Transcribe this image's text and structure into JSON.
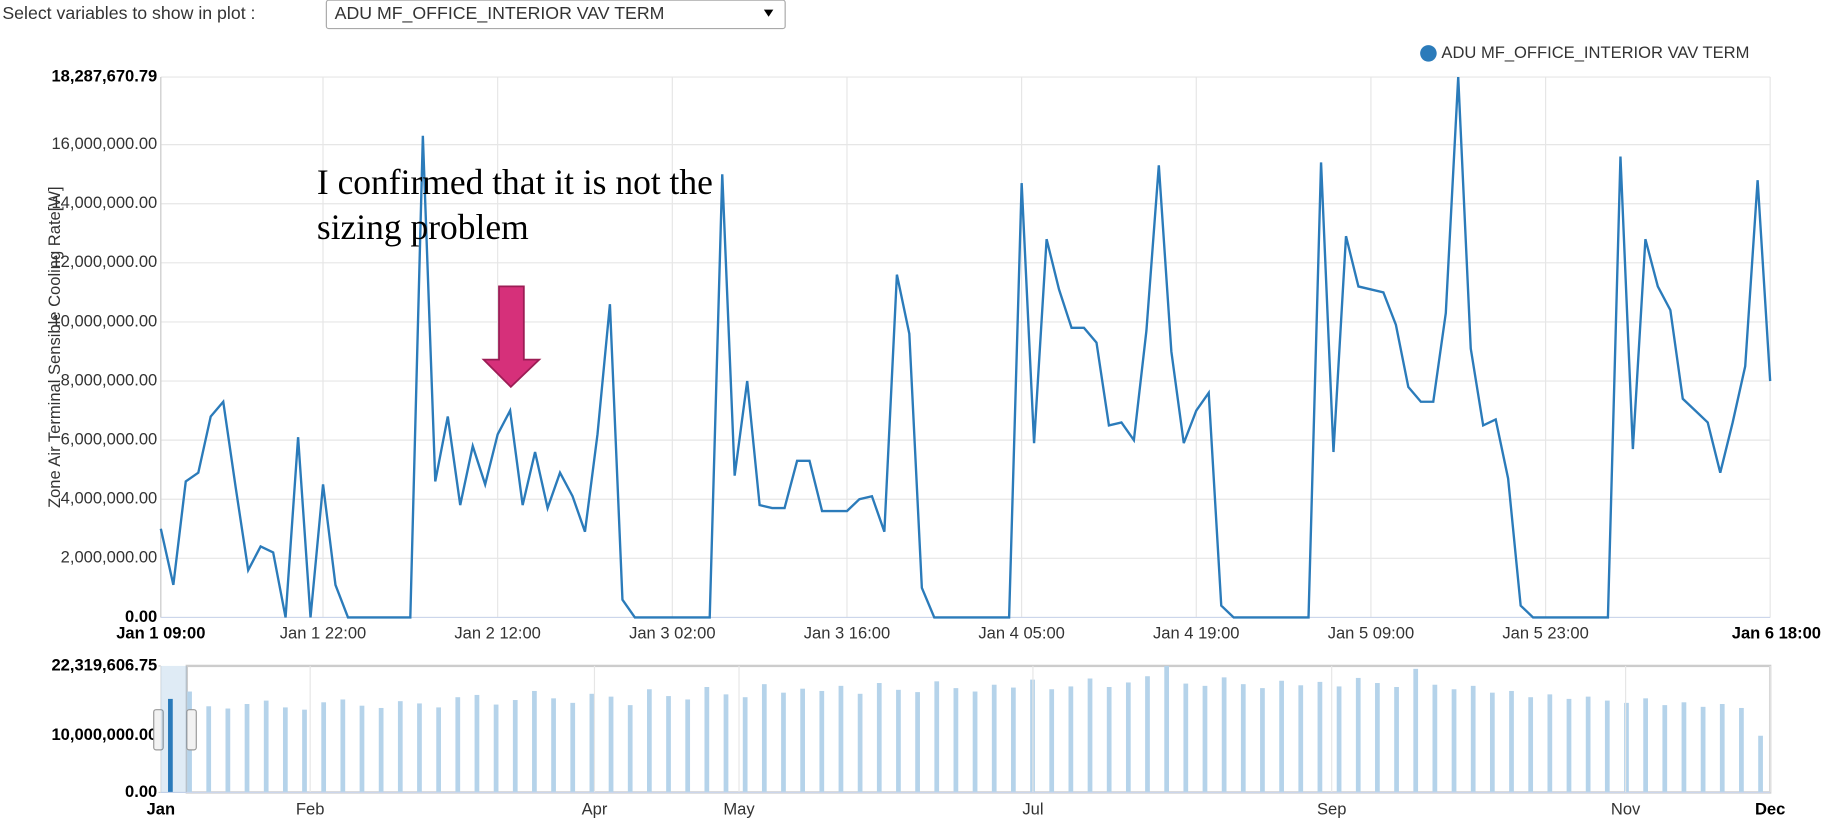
{
  "controls": {
    "label": "Select variables to show in plot :",
    "selected": "ADU MF_OFFICE_INTERIOR VAV TERM"
  },
  "chart_data": [
    {
      "type": "line",
      "ylabel": "Zone Air Terminal Sensible Cooling Rate[W]",
      "annotation": [
        "I confirmed that it is not the",
        "sizing problem"
      ],
      "legend": "top-right",
      "grid": true,
      "ylim": [
        0,
        18287670.79
      ],
      "yticks": [
        {
          "value": 0,
          "label": "0.00"
        },
        {
          "value": 2000000,
          "label": "2,000,000.00"
        },
        {
          "value": 4000000,
          "label": "4,000,000.00"
        },
        {
          "value": 6000000,
          "label": "6,000,000.00"
        },
        {
          "value": 8000000,
          "label": "8,000,000.00"
        },
        {
          "value": 10000000,
          "label": "10,000,000.00"
        },
        {
          "value": 12000000,
          "label": "12,000,000.00"
        },
        {
          "value": 14000000,
          "label": "14,000,000.00"
        },
        {
          "value": 16000000,
          "label": "16,000,000.00"
        },
        {
          "value": 18287670.79,
          "label": "18,287,670.79"
        }
      ],
      "categories": [
        "Jan 1 09:00",
        null,
        null,
        null,
        null,
        null,
        null,
        null,
        null,
        null,
        null,
        null,
        null,
        "Jan 1 22:00",
        null,
        null,
        null,
        null,
        null,
        null,
        null,
        null,
        null,
        null,
        null,
        null,
        null,
        "Jan 2 12:00",
        null,
        null,
        null,
        null,
        null,
        null,
        null,
        null,
        null,
        null,
        null,
        null,
        null,
        "Jan 3 02:00",
        null,
        null,
        null,
        null,
        null,
        null,
        null,
        null,
        null,
        null,
        null,
        null,
        null,
        "Jan 3 16:00",
        null,
        null,
        null,
        null,
        null,
        null,
        null,
        null,
        null,
        null,
        null,
        null,
        null,
        "Jan 4 05:00",
        null,
        null,
        null,
        null,
        null,
        null,
        null,
        null,
        null,
        null,
        null,
        null,
        null,
        "Jan 4 19:00",
        null,
        null,
        null,
        null,
        null,
        null,
        null,
        null,
        null,
        null,
        null,
        null,
        null,
        "Jan 5 09:00",
        null,
        null,
        null,
        null,
        null,
        null,
        null,
        null,
        null,
        null,
        null,
        null,
        null,
        "Jan 5 23:00",
        null,
        null,
        null,
        null,
        null,
        null,
        null,
        null,
        null,
        null,
        null,
        null,
        null,
        null,
        null,
        null,
        null,
        "Jan 6 18:00"
      ],
      "series": [
        {
          "name": "ADU MF_OFFICE_INTERIOR VAV TERM",
          "color": "#2b7bba",
          "values": [
            3000000,
            1100000,
            4600000,
            4900000,
            6800000,
            7300000,
            4400000,
            1600000,
            2400000,
            2200000,
            0,
            6100000,
            0,
            4500000,
            1100000,
            0,
            0,
            0,
            0,
            0,
            0,
            16300000,
            4600000,
            6800000,
            3800000,
            5800000,
            4500000,
            6200000,
            7000000,
            3800000,
            5600000,
            3700000,
            4900000,
            4100000,
            2900000,
            6200000,
            10600000,
            600000,
            0,
            0,
            0,
            0,
            0,
            0,
            0,
            15000000,
            4800000,
            8000000,
            3800000,
            3700000,
            3700000,
            5300000,
            5300000,
            3600000,
            3600000,
            3600000,
            4000000,
            4100000,
            2900000,
            11600000,
            9600000,
            1000000,
            0,
            0,
            0,
            0,
            0,
            0,
            0,
            14700000,
            5900000,
            12800000,
            11100000,
            9800000,
            9800000,
            9300000,
            6500000,
            6600000,
            6000000,
            9700000,
            15300000,
            9000000,
            5900000,
            7000000,
            7600000,
            400000,
            0,
            0,
            0,
            0,
            0,
            0,
            0,
            15400000,
            5600000,
            12900000,
            11200000,
            11100000,
            11000000,
            9900000,
            7800000,
            7300000,
            7300000,
            10300000,
            18287670.79,
            9100000,
            6500000,
            6700000,
            4700000,
            400000,
            0,
            0,
            0,
            0,
            0,
            0,
            0,
            15600000,
            5700000,
            12800000,
            11200000,
            10400000,
            7400000,
            7000000,
            6600000,
            4900000,
            6600000,
            8500000,
            14800000,
            8000000
          ]
        }
      ]
    },
    {
      "type": "column",
      "color": "#b5d3ea",
      "selected_color": "#2b7bba",
      "xlim": [
        0,
        334
      ],
      "xticks": [
        {
          "value": 0,
          "label": "Jan"
        },
        {
          "value": 31,
          "label": "Feb"
        },
        {
          "value": 90,
          "label": "Apr"
        },
        {
          "value": 120,
          "label": "May"
        },
        {
          "value": 181,
          "label": "Jul"
        },
        {
          "value": 243,
          "label": "Sep"
        },
        {
          "value": 304,
          "label": "Nov"
        },
        {
          "value": 334,
          "label": "Dec"
        }
      ],
      "ylim": [
        0,
        22319606.75
      ],
      "yticks": [
        {
          "value": 0,
          "label": "0.00"
        },
        {
          "value": 10000000,
          "label": "10,000,000.00"
        },
        {
          "value": 22319606.75,
          "label": "22,319,606.75"
        }
      ],
      "values": [
        16500000,
        17800000,
        15200000,
        14800000,
        15600000,
        16200000,
        15000000,
        14600000,
        15900000,
        16400000,
        15300000,
        14900000,
        16100000,
        15700000,
        15000000,
        16800000,
        17200000,
        15500000,
        16300000,
        17900000,
        16600000,
        15800000,
        17400000,
        16900000,
        15400000,
        18200000,
        17000000,
        16400000,
        18600000,
        17300000,
        16800000,
        19100000,
        17600000,
        18300000,
        17900000,
        18800000,
        17400000,
        19300000,
        18100000,
        17700000,
        19600000,
        18400000,
        17800000,
        19000000,
        18500000,
        19900000,
        18200000,
        18700000,
        20100000,
        18600000,
        19400000,
        20500000,
        22319606.75,
        19200000,
        18800000,
        20300000,
        19100000,
        18400000,
        19700000,
        18900000,
        19500000,
        18700000,
        20200000,
        19300000,
        18600000,
        21800000,
        19000000,
        18200000,
        18800000,
        17600000,
        17900000,
        16800000,
        17300000,
        16500000,
        16900000,
        16200000,
        15800000,
        16600000,
        15400000,
        15900000,
        15100000,
        15600000,
        14900000,
        10000000
      ]
    }
  ]
}
